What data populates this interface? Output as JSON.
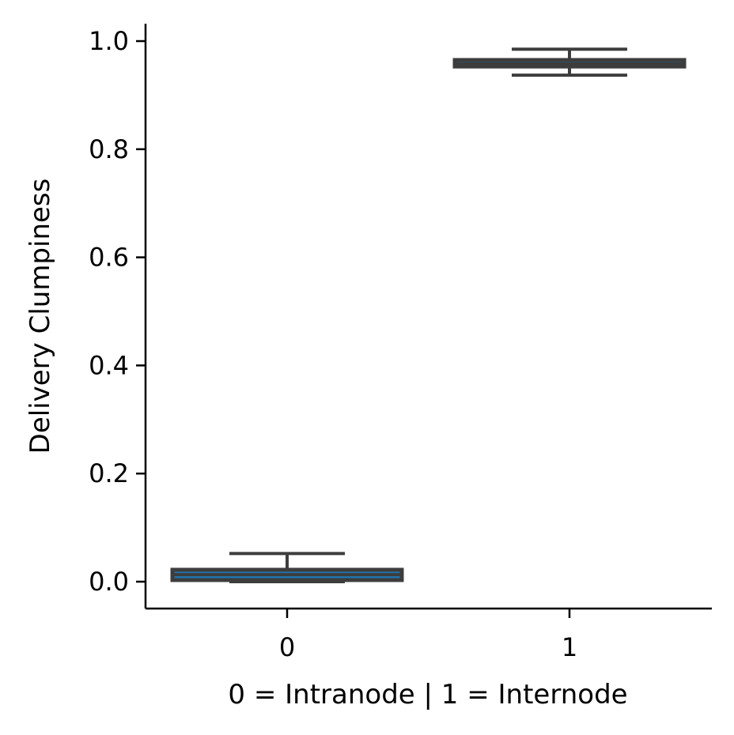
{
  "chart_data": {
    "type": "box",
    "title": "",
    "xlabel": "0 = Intranode | 1 = Internode",
    "ylabel": "Delivery Clumpiness",
    "categories": [
      "0",
      "1"
    ],
    "yticks": [
      "0.0",
      "0.2",
      "0.4",
      "0.6",
      "0.8",
      "1.0"
    ],
    "ylim": [
      -0.048,
      1.032
    ],
    "grid": false,
    "boxes": [
      {
        "category": "0",
        "min": 0.0,
        "q1": 0.003,
        "median": 0.013,
        "q3": 0.022,
        "max": 0.052,
        "fill": "#1f77b4"
      },
      {
        "category": "1",
        "min": 0.937,
        "q1": 0.953,
        "median": 0.958,
        "q3": 0.965,
        "max": 0.985,
        "fill": "#1f77b4"
      }
    ],
    "colors": {
      "box_fill": "#1f77b4",
      "box_line": "#3d3d3d",
      "axis": "#000000"
    }
  }
}
